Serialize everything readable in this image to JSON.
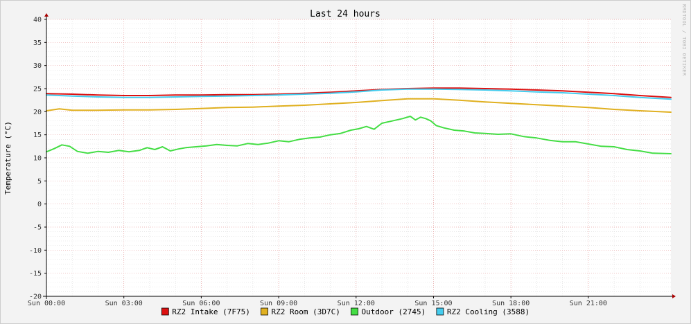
{
  "chart_data": {
    "type": "line",
    "title": "Last 24 hours",
    "ylabel": "Temperature (°C)",
    "xlabel": "",
    "watermark": "RRDTOOL / TOBI OETIKER",
    "ylim": [
      -20,
      40
    ],
    "yticks": [
      40,
      35,
      30,
      25,
      20,
      15,
      10,
      5,
      0,
      -5,
      -10,
      -15,
      -20
    ],
    "xlim": [
      0,
      24.2
    ],
    "xticks": [
      {
        "label": "Sun 00:00",
        "x": 0
      },
      {
        "label": "Sun 03:00",
        "x": 3
      },
      {
        "label": "Sun 06:00",
        "x": 6
      },
      {
        "label": "Sun 09:00",
        "x": 9
      },
      {
        "label": "Sun 12:00",
        "x": 12
      },
      {
        "label": "Sun 15:00",
        "x": 15
      },
      {
        "label": "Sun 18:00",
        "x": 18
      },
      {
        "label": "Sun 21:00",
        "x": 21
      }
    ],
    "x_unit": "hours since Sun 00:00",
    "grid": true,
    "legend_placement": "bottom",
    "background": "#ffffff",
    "series": [
      {
        "name": "RZ2 Intake (7F75)",
        "color": "#dd1111",
        "x": [
          0,
          1,
          2,
          3,
          4,
          5,
          6,
          7,
          8,
          9,
          10,
          11,
          12,
          13,
          14,
          15,
          16,
          17,
          18,
          19,
          20,
          21,
          22,
          23,
          24.2
        ],
        "y": [
          23.9,
          23.8,
          23.6,
          23.5,
          23.5,
          23.6,
          23.6,
          23.7,
          23.7,
          23.8,
          24.0,
          24.2,
          24.5,
          24.8,
          25.0,
          25.1,
          25.1,
          25.0,
          24.9,
          24.7,
          24.5,
          24.2,
          23.9,
          23.5,
          23.1
        ]
      },
      {
        "name": "RZ2 Room (3D7C)",
        "color": "#e0b020",
        "x": [
          0,
          0.5,
          1,
          2,
          3,
          4,
          5,
          6,
          7,
          8,
          9,
          10,
          11,
          12,
          13,
          14,
          15,
          16,
          17,
          18,
          19,
          20,
          21,
          22,
          23,
          24.2
        ],
        "y": [
          20.2,
          20.6,
          20.3,
          20.3,
          20.4,
          20.4,
          20.5,
          20.7,
          20.9,
          21.0,
          21.2,
          21.4,
          21.7,
          22.0,
          22.4,
          22.8,
          22.8,
          22.5,
          22.1,
          21.8,
          21.5,
          21.2,
          20.9,
          20.5,
          20.2,
          19.9
        ]
      },
      {
        "name": "Outdoor (2745)",
        "color": "#44dd44",
        "x": [
          0,
          0.3,
          0.6,
          0.9,
          1.2,
          1.6,
          2.0,
          2.4,
          2.8,
          3.2,
          3.6,
          3.9,
          4.2,
          4.5,
          4.8,
          5.1,
          5.4,
          5.8,
          6.2,
          6.6,
          7.0,
          7.4,
          7.8,
          8.2,
          8.6,
          9.0,
          9.4,
          9.8,
          10.2,
          10.6,
          11.0,
          11.4,
          11.8,
          12.1,
          12.4,
          12.7,
          13.0,
          13.4,
          13.8,
          14.1,
          14.3,
          14.5,
          14.7,
          14.9,
          15.1,
          15.4,
          15.8,
          16.2,
          16.6,
          17.0,
          17.5,
          18.0,
          18.5,
          19.0,
          19.5,
          20.0,
          20.5,
          21.0,
          21.5,
          22.0,
          22.5,
          23.0,
          23.5,
          24.2
        ],
        "y": [
          11.3,
          12.0,
          12.8,
          12.5,
          11.4,
          11.0,
          11.4,
          11.2,
          11.6,
          11.3,
          11.6,
          12.2,
          11.8,
          12.4,
          11.5,
          11.9,
          12.2,
          12.4,
          12.6,
          12.9,
          12.7,
          12.6,
          13.1,
          12.9,
          13.2,
          13.7,
          13.5,
          14.0,
          14.3,
          14.5,
          15.0,
          15.3,
          16.0,
          16.3,
          16.8,
          16.2,
          17.5,
          18.0,
          18.5,
          19.0,
          18.2,
          18.8,
          18.5,
          18.0,
          17.0,
          16.5,
          16.0,
          15.8,
          15.4,
          15.3,
          15.1,
          15.2,
          14.6,
          14.3,
          13.8,
          13.5,
          13.5,
          13.0,
          12.5,
          12.4,
          11.8,
          11.5,
          11.0,
          10.9
        ]
      },
      {
        "name": "RZ2 Cooling (3588)",
        "color": "#44ccee",
        "x": [
          0,
          1,
          2,
          3,
          4,
          5,
          6,
          7,
          8,
          9,
          10,
          11,
          12,
          13,
          14,
          15,
          16,
          17,
          18,
          19,
          20,
          21,
          22,
          23,
          24.2
        ],
        "y": [
          23.6,
          23.4,
          23.2,
          23.1,
          23.1,
          23.2,
          23.3,
          23.4,
          23.5,
          23.6,
          23.8,
          24.0,
          24.3,
          24.7,
          24.9,
          24.9,
          24.8,
          24.7,
          24.5,
          24.3,
          24.1,
          23.8,
          23.5,
          23.1,
          22.7
        ]
      }
    ]
  }
}
